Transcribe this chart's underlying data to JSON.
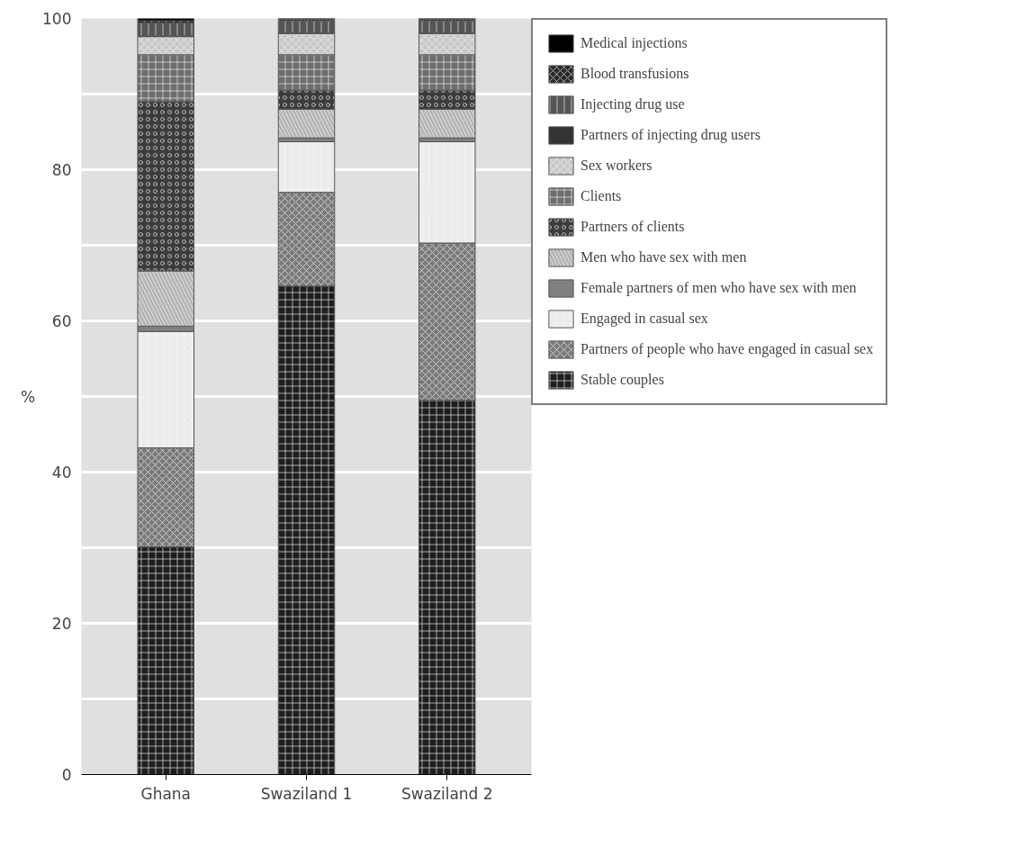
{
  "chart_data": {
    "type": "bar",
    "stacked": true,
    "ylabel": "%",
    "categories": [
      "Ghana",
      "Swaziland 1",
      "Swaziland 2"
    ],
    "ylim": [
      0,
      100
    ],
    "yticks": [
      0,
      {
        "value": 10,
        "label": null
      },
      20,
      {
        "value": 30,
        "label": null
      },
      40,
      {
        "value": 50,
        "label": null
      },
      60,
      {
        "value": 70,
        "label": null
      },
      80,
      {
        "value": 90,
        "label": null
      },
      100
    ],
    "grid": "y",
    "legend": "right",
    "series": [
      {
        "name": "Stable couples",
        "color": "#1e1e1e",
        "values": [
          30.1,
          64.6,
          49.5
        ]
      },
      {
        "name": "Partners of people who have engaged in casual sex",
        "color": "#7a7a7a",
        "values": [
          13.1,
          12.4,
          20.8
        ]
      },
      {
        "name": "Engaged in casual sex",
        "color": "#ececec",
        "values": [
          15.4,
          6.7,
          13.4
        ]
      },
      {
        "name": "Female partners of men who have sex with men",
        "color": "#808080",
        "values": [
          0.7,
          0.5,
          0.5
        ]
      },
      {
        "name": "Men who have sex with men",
        "color": "#b4b4b4",
        "values": [
          7.3,
          3.8,
          3.8
        ]
      },
      {
        "name": "Partners of clients",
        "color": "#3c3c3c",
        "values": [
          22.4,
          2.5,
          2.5
        ]
      },
      {
        "name": "Clients",
        "color": "#6e6e6e",
        "values": [
          6.2,
          4.7,
          4.7
        ]
      },
      {
        "name": "Sex workers",
        "color": "#c8c8c8",
        "values": [
          2.4,
          2.8,
          2.8
        ]
      },
      {
        "name": "Partners of injecting drug users",
        "color": "#333333",
        "values": [
          0.1,
          0.1,
          0.1
        ]
      },
      {
        "name": "Injecting drug use",
        "color": "#555555",
        "values": [
          1.7,
          1.6,
          1.6
        ]
      },
      {
        "name": "Blood transfusions",
        "color": "#2a2a2a",
        "values": [
          0.3,
          0.2,
          0.2
        ]
      },
      {
        "name": "Medical injections",
        "color": "#000000",
        "values": [
          0.3,
          0.1,
          0.1
        ]
      }
    ]
  }
}
